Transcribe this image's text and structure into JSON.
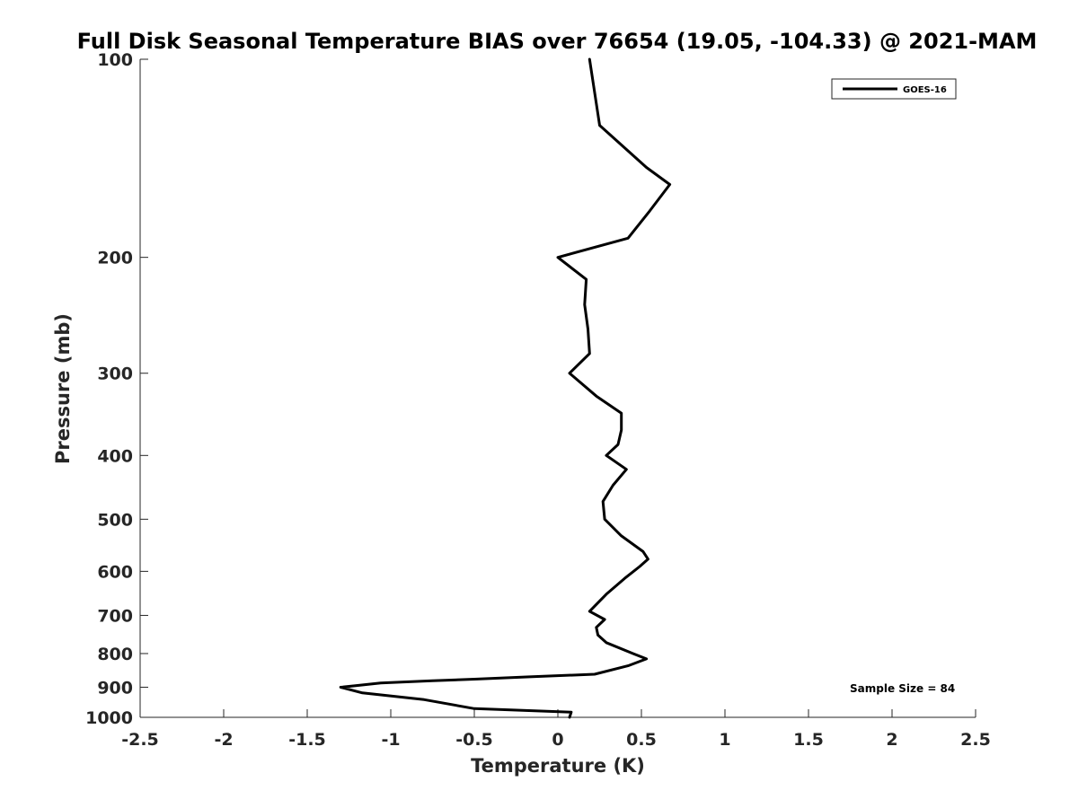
{
  "chart_data": {
    "type": "line",
    "title": "Full Disk Seasonal Temperature BIAS over 76654 (19.05, -104.33) @ 2021-MAM",
    "xlabel": "Temperature (K)",
    "ylabel": "Pressure (mb)",
    "xlim": [
      -2.5,
      2.5
    ],
    "ylim": [
      1000,
      100
    ],
    "y_scale": "log",
    "y_reversed": true,
    "grid": false,
    "legend_position": "top-right",
    "x_ticks": [
      -2.5,
      -2,
      -1.5,
      -1,
      -0.5,
      0,
      0.5,
      1,
      1.5,
      2,
      2.5
    ],
    "x_tick_labels": [
      "-2.5",
      "-2",
      "-1.5",
      "-1",
      "-0.5",
      "0",
      "0.5",
      "1",
      "1.5",
      "2",
      "2.5"
    ],
    "y_ticks": [
      100,
      200,
      300,
      400,
      500,
      600,
      700,
      800,
      900,
      1000
    ],
    "y_tick_labels": [
      "100",
      "200",
      "300",
      "400",
      "500",
      "600",
      "700",
      "800",
      "900",
      "1000"
    ],
    "series": [
      {
        "name": "GOES-16",
        "color": "#000000",
        "points": [
          {
            "x": 0.19,
            "y": 100
          },
          {
            "x": 0.25,
            "y": 126
          },
          {
            "x": 0.53,
            "y": 146
          },
          {
            "x": 0.67,
            "y": 155
          },
          {
            "x": 0.55,
            "y": 170
          },
          {
            "x": 0.42,
            "y": 187
          },
          {
            "x": 0.0,
            "y": 200
          },
          {
            "x": 0.17,
            "y": 216
          },
          {
            "x": 0.16,
            "y": 236
          },
          {
            "x": 0.18,
            "y": 257
          },
          {
            "x": 0.19,
            "y": 280
          },
          {
            "x": 0.07,
            "y": 300
          },
          {
            "x": 0.23,
            "y": 325
          },
          {
            "x": 0.38,
            "y": 345
          },
          {
            "x": 0.38,
            "y": 366
          },
          {
            "x": 0.36,
            "y": 385
          },
          {
            "x": 0.29,
            "y": 400
          },
          {
            "x": 0.41,
            "y": 420
          },
          {
            "x": 0.33,
            "y": 444
          },
          {
            "x": 0.27,
            "y": 470
          },
          {
            "x": 0.28,
            "y": 500
          },
          {
            "x": 0.38,
            "y": 530
          },
          {
            "x": 0.51,
            "y": 560
          },
          {
            "x": 0.54,
            "y": 575
          },
          {
            "x": 0.49,
            "y": 590
          },
          {
            "x": 0.4,
            "y": 615
          },
          {
            "x": 0.29,
            "y": 650
          },
          {
            "x": 0.19,
            "y": 690
          },
          {
            "x": 0.28,
            "y": 710
          },
          {
            "x": 0.23,
            "y": 730
          },
          {
            "x": 0.24,
            "y": 750
          },
          {
            "x": 0.29,
            "y": 770
          },
          {
            "x": 0.45,
            "y": 800
          },
          {
            "x": 0.53,
            "y": 815
          },
          {
            "x": 0.42,
            "y": 835
          },
          {
            "x": 0.22,
            "y": 860
          },
          {
            "x": -0.17,
            "y": 868
          },
          {
            "x": -0.5,
            "y": 875
          },
          {
            "x": -0.75,
            "y": 880
          },
          {
            "x": -1.06,
            "y": 887
          },
          {
            "x": -1.3,
            "y": 900
          },
          {
            "x": -1.17,
            "y": 918
          },
          {
            "x": -0.8,
            "y": 940
          },
          {
            "x": -0.5,
            "y": 970
          },
          {
            "x": 0.08,
            "y": 982
          },
          {
            "x": 0.07,
            "y": 1000
          }
        ]
      }
    ],
    "legend_entries": [
      "GOES-16"
    ],
    "annotation": "Sample Size = 84"
  }
}
